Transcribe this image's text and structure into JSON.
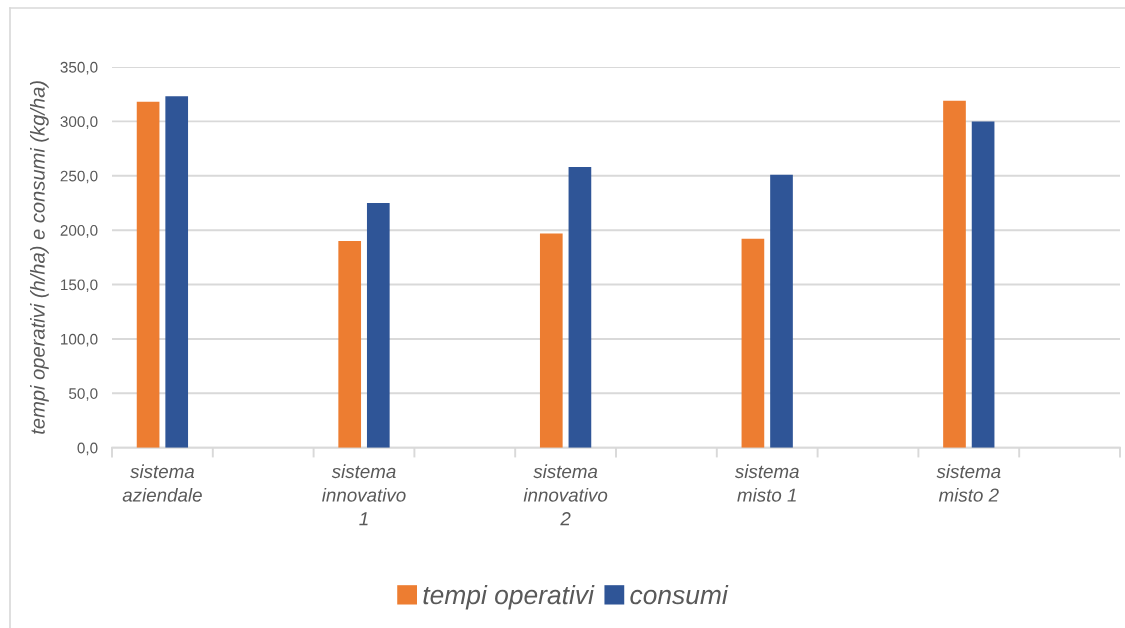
{
  "chart_data": {
    "type": "bar",
    "ylabel": "tempi operativi (h/ha) e consumi (kg/ha)",
    "categories": [
      "sistema aziendale",
      null,
      "sistema innovativo 1",
      null,
      "sistema innovativo 2",
      null,
      "sistema misto 1",
      null,
      "sistema misto 2",
      null
    ],
    "series": [
      {
        "name": "tempi operativi",
        "color": "#ed7d31",
        "values": [
          318,
          null,
          190,
          null,
          197,
          null,
          192,
          null,
          319,
          null
        ]
      },
      {
        "name": "consumi",
        "color": "#2f5597",
        "values": [
          323,
          null,
          225,
          null,
          258,
          null,
          251,
          null,
          300,
          null
        ]
      }
    ],
    "ylim": [
      0,
      350
    ],
    "yticks": [
      {
        "value": 0,
        "label": "0,0"
      },
      {
        "value": 50,
        "label": "50,0"
      },
      {
        "value": 100,
        "label": "100,0"
      },
      {
        "value": 150,
        "label": "150,0"
      },
      {
        "value": 200,
        "label": "200,0"
      },
      {
        "value": 250,
        "label": "250,0"
      },
      {
        "value": 300,
        "label": "300,0"
      },
      {
        "value": 350,
        "label": "350,0"
      }
    ],
    "grid": "y",
    "legend": "bottom"
  }
}
